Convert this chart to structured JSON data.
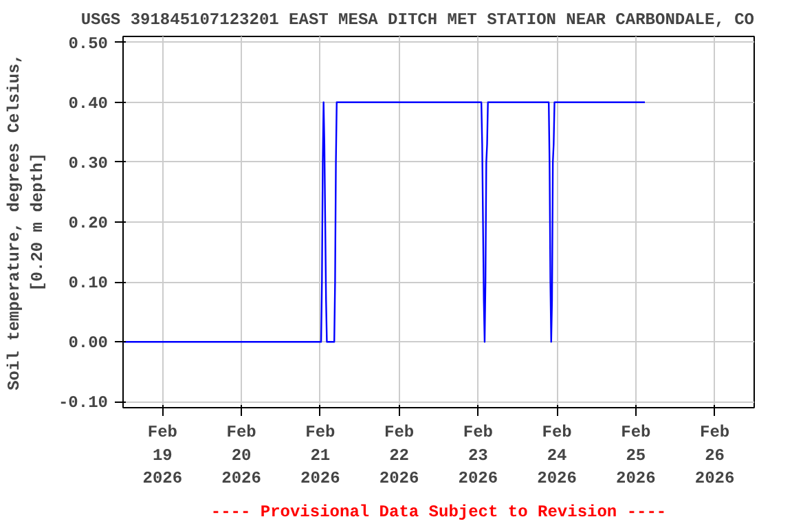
{
  "chart_data": {
    "type": "line",
    "title": "USGS 391845107123201 EAST MESA DITCH MET STATION NEAR CARBONDALE, CO",
    "ylabel": "Soil temperature, degrees Celsius,\n[0.20 m depth]",
    "annotations": [
      "---- Provisional Data Subject to Revision ----"
    ],
    "series": [
      {
        "color": "#0000ff",
        "x": [
          "2026-02-18T12:00",
          "2026-02-21T00:15",
          "2026-02-21T00:30",
          "2026-02-21T00:45",
          "2026-02-21T01:00",
          "2026-02-21T01:15",
          "2026-02-21T01:30",
          "2026-02-21T01:45",
          "2026-02-21T02:00",
          "2026-02-21T04:15",
          "2026-02-21T04:30",
          "2026-02-21T04:45",
          "2026-02-21T05:00",
          "2026-02-23T01:00",
          "2026-02-23T01:15",
          "2026-02-23T01:30",
          "2026-02-23T01:45",
          "2026-02-23T02:00",
          "2026-02-23T02:15",
          "2026-02-23T02:30",
          "2026-02-23T02:45",
          "2026-02-23T03:00",
          "2026-02-23T21:30",
          "2026-02-23T21:45",
          "2026-02-23T22:00",
          "2026-02-23T22:15",
          "2026-02-23T22:30",
          "2026-02-23T22:45",
          "2026-02-23T23:00",
          "2026-02-23T23:15",
          "2026-02-25T02:45"
        ],
        "values": [
          0.0,
          0.0,
          0.1,
          0.3,
          0.4,
          0.33,
          0.2,
          0.07,
          0.0,
          0.0,
          0.1,
          0.3,
          0.4,
          0.4,
          0.33,
          0.2,
          0.07,
          0.0,
          0.1,
          0.3,
          0.33,
          0.4,
          0.4,
          0.3,
          0.1,
          0.0,
          0.07,
          0.3,
          0.33,
          0.4,
          0.4
        ]
      }
    ],
    "xlim": [
      "2026-02-18T12:00",
      "2026-02-26T12:00"
    ],
    "xticks": [
      {
        "value": "2026-02-19",
        "label": "Feb\n19\n2026"
      },
      {
        "value": "2026-02-20",
        "label": "Feb\n20\n2026"
      },
      {
        "value": "2026-02-21",
        "label": "Feb\n21\n2026"
      },
      {
        "value": "2026-02-22",
        "label": "Feb\n22\n2026"
      },
      {
        "value": "2026-02-23",
        "label": "Feb\n23\n2026"
      },
      {
        "value": "2026-02-24",
        "label": "Feb\n24\n2026"
      },
      {
        "value": "2026-02-25",
        "label": "Feb\n25\n2026"
      },
      {
        "value": "2026-02-26",
        "label": "Feb\n26\n2026"
      }
    ],
    "ylim": [
      -0.11,
      0.51
    ],
    "yticks": [
      {
        "value": -0.1,
        "label": "-0.10"
      },
      {
        "value": 0.0,
        "label": "0.00"
      },
      {
        "value": 0.1,
        "label": "0.10"
      },
      {
        "value": 0.2,
        "label": "0.20"
      },
      {
        "value": 0.3,
        "label": "0.30"
      },
      {
        "value": 0.4,
        "label": "0.40"
      },
      {
        "value": 0.5,
        "label": "0.50"
      }
    ],
    "grid": true,
    "marker": "none",
    "line_style": "solid"
  }
}
